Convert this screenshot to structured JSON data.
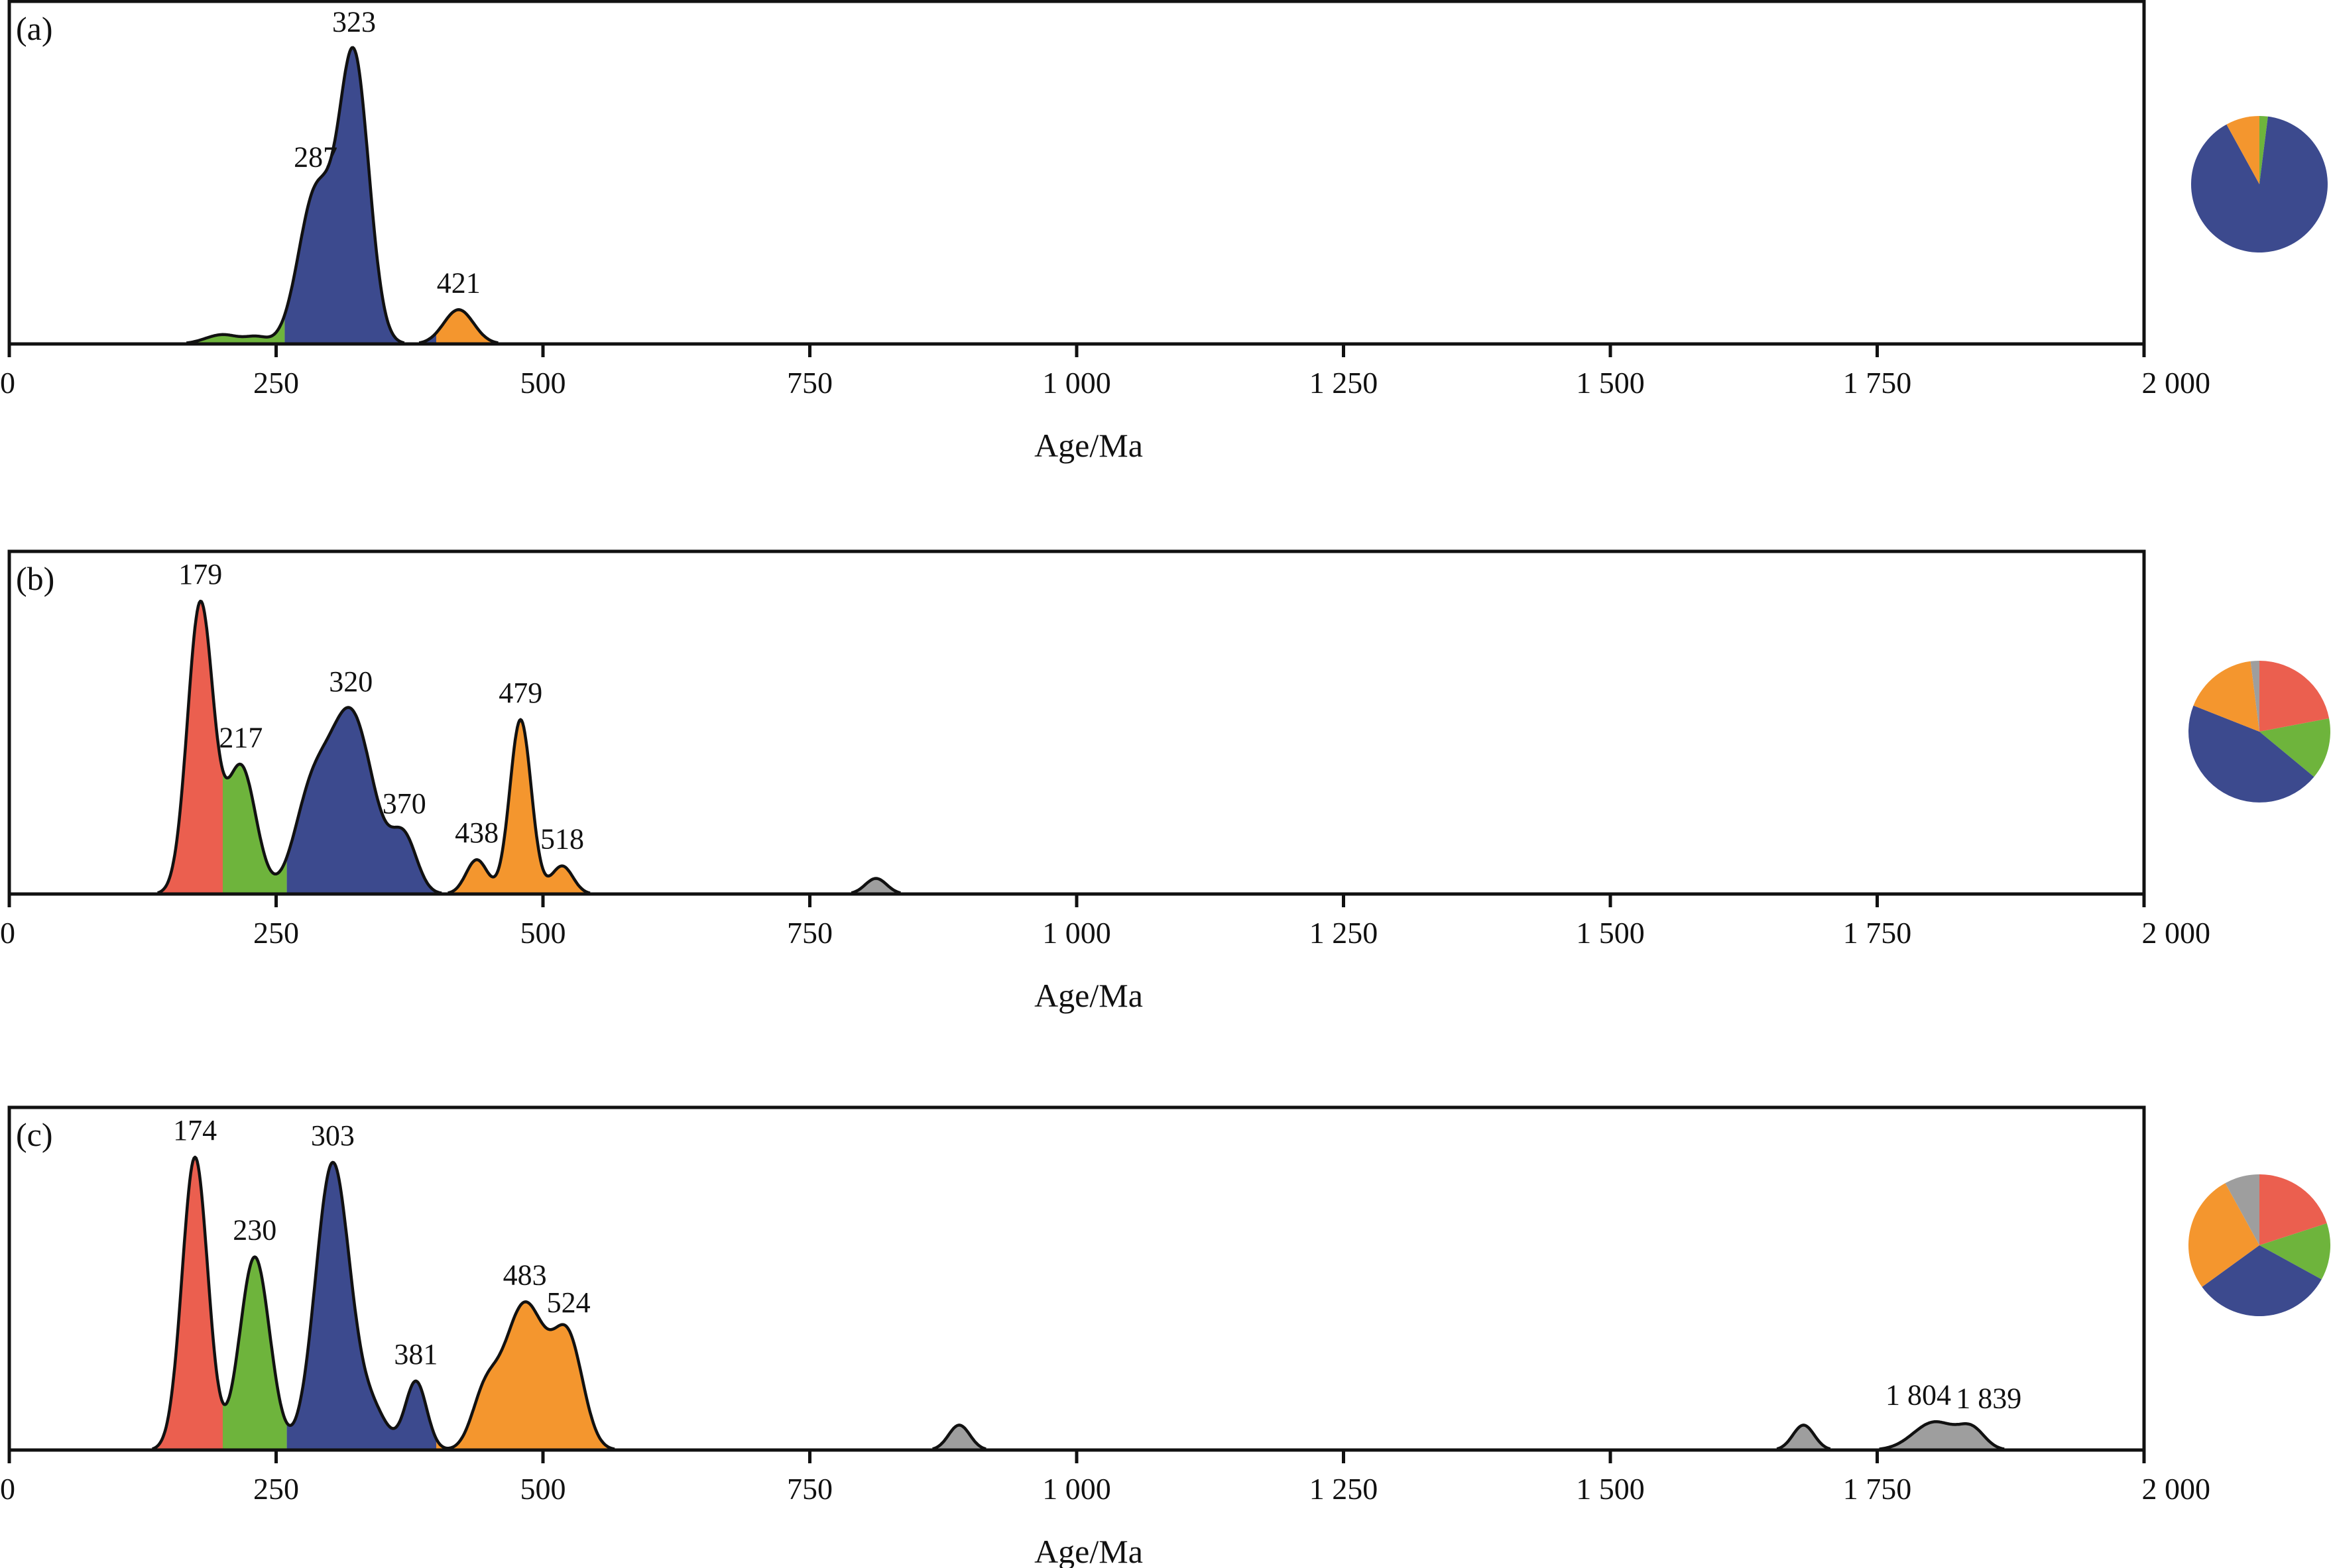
{
  "colors": {
    "red": "#EB5F4F",
    "green": "#6EB43C",
    "blue": "#3C4A8E",
    "orange": "#F4962E",
    "gray": "#9E9E9E",
    "axis": "#111111"
  },
  "chart_data": [
    {
      "type": "area",
      "panel_label": "(a)",
      "title": "",
      "xlabel": "Age/Ma",
      "ylabel": "",
      "xlim": [
        0,
        2000
      ],
      "xticks": [
        0,
        250,
        500,
        750,
        1000,
        1250,
        1500,
        1750,
        2000
      ],
      "xtick_labels": [
        "0",
        "250",
        "500",
        "750",
        "1 000",
        "1 250",
        "1 500",
        "1 750",
        "2 000"
      ],
      "ylim": [
        0,
        1.1
      ],
      "grid": false,
      "components": [
        {
          "mu": 200,
          "sigma": 16,
          "amp": 0.03
        },
        {
          "mu": 232,
          "sigma": 10,
          "amp": 0.02
        },
        {
          "mu": 287,
          "sigma": 16,
          "amp": 0.48
        },
        {
          "mu": 323,
          "sigma": 14,
          "amp": 0.91
        },
        {
          "mu": 421,
          "sigma": 14,
          "amp": 0.11
        }
      ],
      "color_ranges": [
        {
          "from": 0,
          "to": 258,
          "color": "green"
        },
        {
          "from": 258,
          "to": 400,
          "color": "blue"
        },
        {
          "from": 400,
          "to": 2000,
          "color": "orange"
        }
      ],
      "peak_labels": [
        {
          "age": 287,
          "label": "287"
        },
        {
          "age": 323,
          "label": "323"
        },
        {
          "age": 421,
          "label": "421"
        }
      ],
      "pie": [
        {
          "group": "green",
          "value": 2
        },
        {
          "group": "blue",
          "value": 90
        },
        {
          "group": "orange",
          "value": 8
        }
      ]
    },
    {
      "type": "area",
      "panel_label": "(b)",
      "title": "",
      "xlabel": "Age/Ma",
      "ylabel": "",
      "xlim": [
        0,
        2000
      ],
      "xticks": [
        0,
        250,
        500,
        750,
        1000,
        1250,
        1500,
        1750,
        2000
      ],
      "xtick_labels": [
        "0",
        "250",
        "500",
        "750",
        "1 000",
        "1 250",
        "1 500",
        "1 750",
        "2 000"
      ],
      "ylim": [
        0,
        1.1
      ],
      "grid": false,
      "components": [
        {
          "mu": 179,
          "sigma": 12,
          "amp": 0.93
        },
        {
          "mu": 217,
          "sigma": 14,
          "amp": 0.41
        },
        {
          "mu": 282,
          "sigma": 16,
          "amp": 0.27
        },
        {
          "mu": 320,
          "sigma": 21,
          "amp": 0.58
        },
        {
          "mu": 370,
          "sigma": 12,
          "amp": 0.17
        },
        {
          "mu": 438,
          "sigma": 10,
          "amp": 0.11
        },
        {
          "mu": 479,
          "sigma": 10,
          "amp": 0.56
        },
        {
          "mu": 518,
          "sigma": 10,
          "amp": 0.09
        },
        {
          "mu": 812,
          "sigma": 10,
          "amp": 0.05
        }
      ],
      "color_ranges": [
        {
          "from": 0,
          "to": 200,
          "color": "red"
        },
        {
          "from": 200,
          "to": 260,
          "color": "green"
        },
        {
          "from": 260,
          "to": 400,
          "color": "blue"
        },
        {
          "from": 400,
          "to": 700,
          "color": "orange"
        },
        {
          "from": 700,
          "to": 2000,
          "color": "gray"
        }
      ],
      "peak_labels": [
        {
          "age": 179,
          "label": "179"
        },
        {
          "age": 217,
          "label": "217"
        },
        {
          "age": 320,
          "label": "320"
        },
        {
          "age": 370,
          "label": "370"
        },
        {
          "age": 438,
          "label": "438"
        },
        {
          "age": 479,
          "label": "479"
        },
        {
          "age": 518,
          "label": "518"
        }
      ],
      "pie": [
        {
          "group": "red",
          "value": 22
        },
        {
          "group": "green",
          "value": 14
        },
        {
          "group": "blue",
          "value": 45
        },
        {
          "group": "orange",
          "value": 17
        },
        {
          "group": "gray",
          "value": 2
        }
      ]
    },
    {
      "type": "area",
      "panel_label": "(c)",
      "title": "",
      "xlabel": "Age/Ma",
      "ylabel": "",
      "xlim": [
        0,
        2000
      ],
      "xticks": [
        0,
        250,
        500,
        750,
        1000,
        1250,
        1500,
        1750,
        2000
      ],
      "xtick_labels": [
        "0",
        "250",
        "500",
        "750",
        "1 000",
        "1 250",
        "1 500",
        "1 750",
        "2 000"
      ],
      "ylim": [
        0,
        1.1
      ],
      "grid": false,
      "components": [
        {
          "mu": 174,
          "sigma": 12,
          "amp": 0.94
        },
        {
          "mu": 230,
          "sigma": 14,
          "amp": 0.62
        },
        {
          "mu": 303,
          "sigma": 16,
          "amp": 0.92
        },
        {
          "mu": 340,
          "sigma": 14,
          "amp": 0.12
        },
        {
          "mu": 381,
          "sigma": 10,
          "amp": 0.22
        },
        {
          "mu": 445,
          "sigma": 12,
          "amp": 0.15
        },
        {
          "mu": 483,
          "sigma": 20,
          "amp": 0.47
        },
        {
          "mu": 524,
          "sigma": 14,
          "amp": 0.33
        },
        {
          "mu": 890,
          "sigma": 10,
          "amp": 0.08
        },
        {
          "mu": 1681,
          "sigma": 10,
          "amp": 0.08
        },
        {
          "mu": 1804,
          "sigma": 20,
          "amp": 0.09
        },
        {
          "mu": 1839,
          "sigma": 12,
          "amp": 0.06
        }
      ],
      "color_ranges": [
        {
          "from": 0,
          "to": 200,
          "color": "red"
        },
        {
          "from": 200,
          "to": 260,
          "color": "green"
        },
        {
          "from": 260,
          "to": 400,
          "color": "blue"
        },
        {
          "from": 400,
          "to": 700,
          "color": "orange"
        },
        {
          "from": 700,
          "to": 2000,
          "color": "gray"
        }
      ],
      "peak_labels": [
        {
          "age": 174,
          "label": "174"
        },
        {
          "age": 230,
          "label": "230"
        },
        {
          "age": 303,
          "label": "303"
        },
        {
          "age": 381,
          "label": "381"
        },
        {
          "age": 483,
          "label": "483"
        },
        {
          "age": 524,
          "label": "524"
        },
        {
          "age": 1804,
          "label": "1 804"
        },
        {
          "age": 1839,
          "label": "1 839"
        }
      ],
      "pie": [
        {
          "group": "red",
          "value": 20
        },
        {
          "group": "green",
          "value": 13
        },
        {
          "group": "blue",
          "value": 32
        },
        {
          "group": "orange",
          "value": 27
        },
        {
          "group": "gray",
          "value": 8
        }
      ]
    }
  ]
}
